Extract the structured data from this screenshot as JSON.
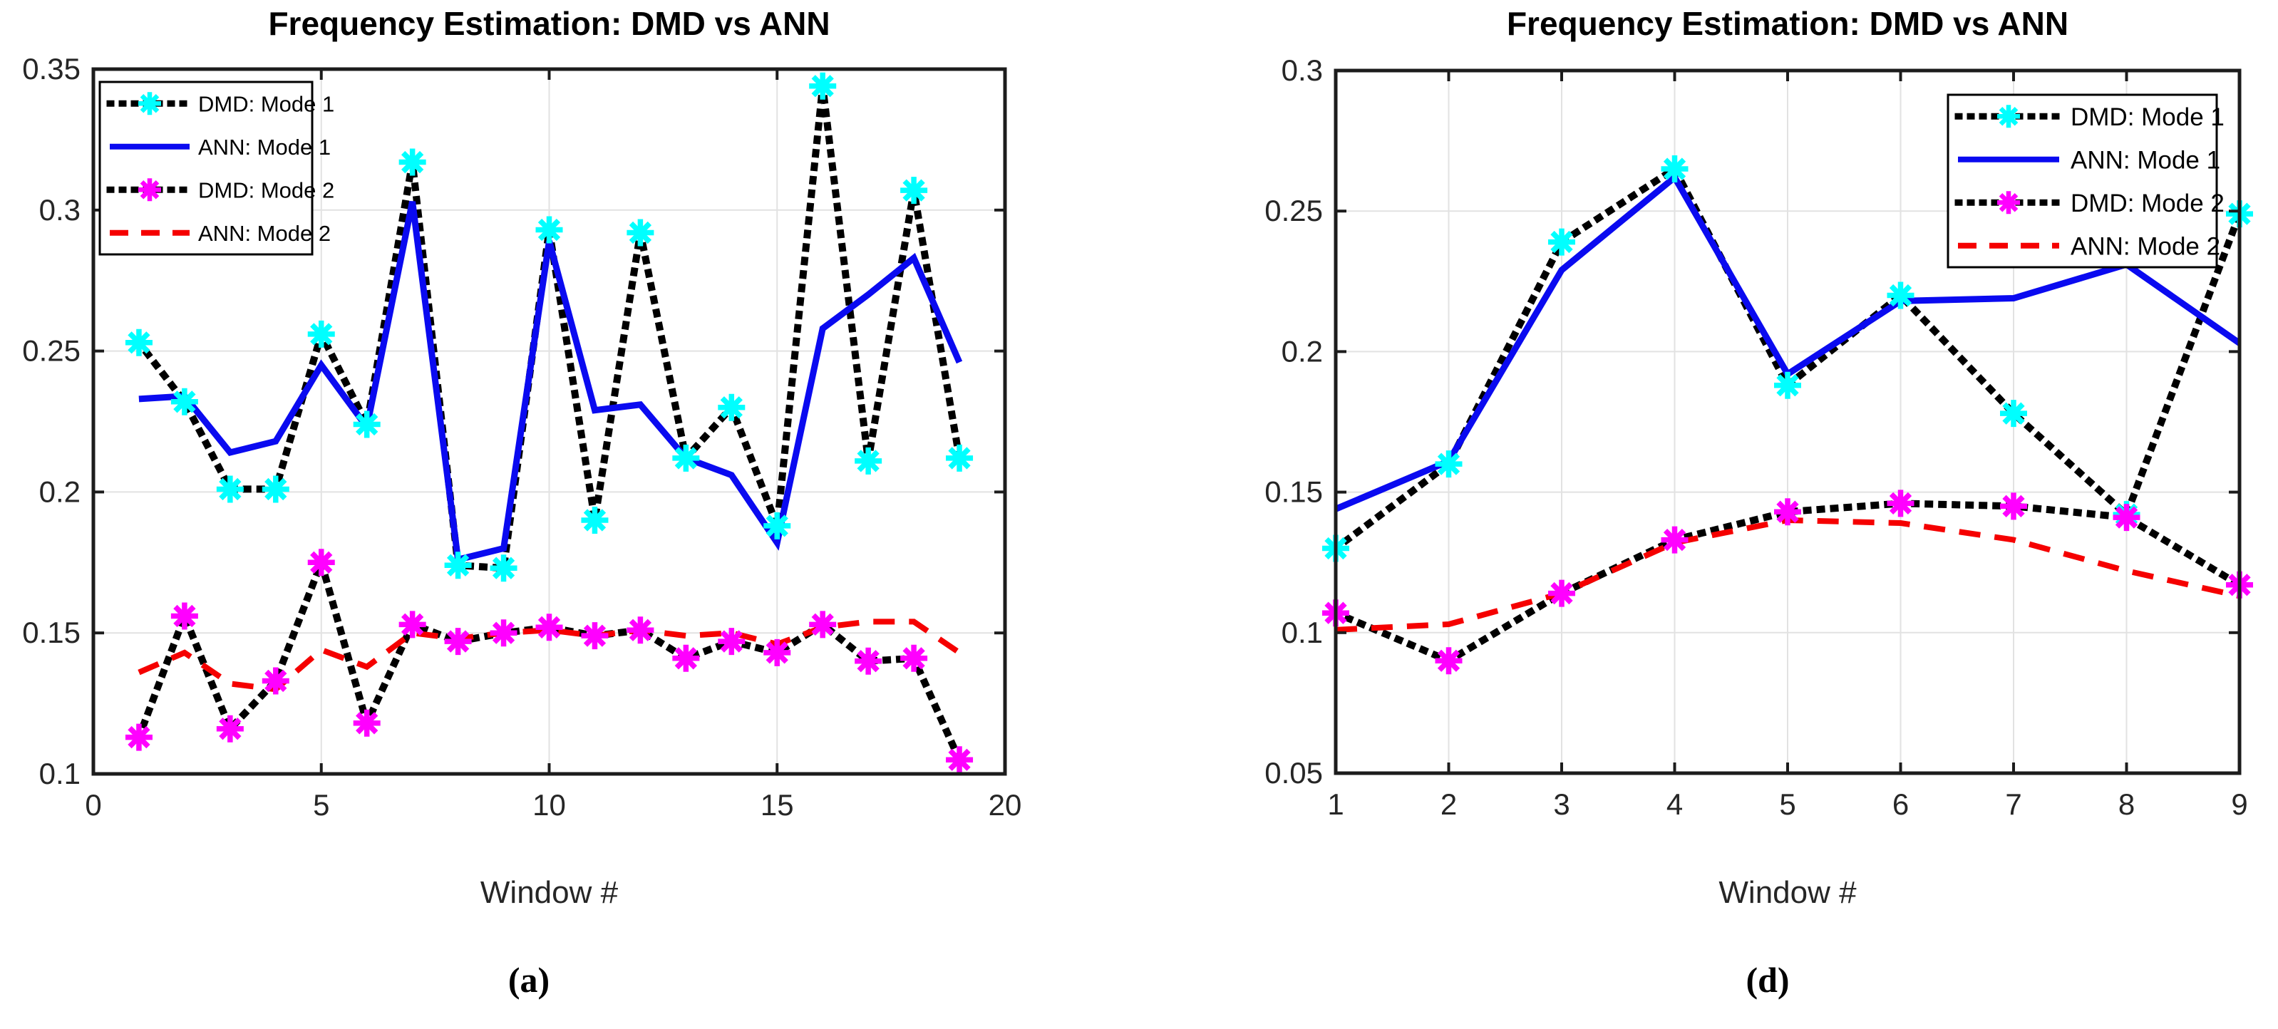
{
  "page_title": "Frequency Estimation: DMD vs ANN",
  "colors": {
    "dmd_line": "#000000",
    "ann_mode1": "#0a0af0",
    "ann_mode2": "#f50000",
    "dmd_mode1_marker": "#00ffff",
    "dmd_mode2_marker": "#ff00ff",
    "grid": "#e2e2e2",
    "axis_frame": "#1c1c1c",
    "tick_label": "#262626"
  },
  "chart_data": [
    {
      "id": "a",
      "type": "line",
      "title": "Frequency Estimation: DMD vs ANN",
      "xlabel": "Window #",
      "caption": "(a)",
      "grid": true,
      "legend_position": "top-left",
      "xlim": [
        0,
        20
      ],
      "ylim": [
        0.1,
        0.35
      ],
      "xtick_values": [
        0,
        5,
        10,
        15,
        20
      ],
      "xticks": [
        "0",
        "5",
        "10",
        "15",
        "20"
      ],
      "ytick_values": [
        0.1,
        0.15,
        0.2,
        0.25,
        0.3,
        0.35
      ],
      "yticks": [
        "0.1",
        "0.15",
        "0.2",
        "0.25",
        "0.3",
        "0.35"
      ],
      "x": [
        1,
        2,
        3,
        4,
        5,
        6,
        7,
        8,
        9,
        10,
        11,
        12,
        13,
        14,
        15,
        16,
        17,
        18,
        19
      ],
      "series": [
        {
          "name": "DMD: Mode 1",
          "style": "dotted",
          "line_color": "#000000",
          "marker": "asterisk",
          "marker_color": "#00ffff",
          "values": [
            0.253,
            0.232,
            0.201,
            0.201,
            0.256,
            0.224,
            0.317,
            0.174,
            0.173,
            0.293,
            0.19,
            0.292,
            0.212,
            0.23,
            0.188,
            0.344,
            0.211,
            0.307,
            0.212
          ]
        },
        {
          "name": "ANN: Mode 1",
          "style": "solid",
          "line_color": "#0a0af0",
          "marker": "none",
          "values": [
            0.233,
            0.234,
            0.214,
            0.218,
            0.245,
            0.223,
            0.303,
            0.176,
            0.18,
            0.289,
            0.229,
            0.231,
            0.212,
            0.206,
            0.182,
            0.258,
            0.27,
            0.283,
            0.246
          ]
        },
        {
          "name": "DMD: Mode 2",
          "style": "dotted",
          "line_color": "#000000",
          "marker": "asterisk",
          "marker_color": "#ff00ff",
          "values": [
            0.113,
            0.156,
            0.116,
            0.133,
            0.175,
            0.118,
            0.153,
            0.147,
            0.15,
            0.152,
            0.149,
            0.151,
            0.141,
            0.147,
            0.143,
            0.153,
            0.14,
            0.141,
            0.105
          ]
        },
        {
          "name": "ANN: Mode 2",
          "style": "dashed",
          "line_color": "#f50000",
          "marker": "none",
          "values": [
            0.136,
            0.143,
            0.132,
            0.13,
            0.144,
            0.138,
            0.15,
            0.148,
            0.15,
            0.151,
            0.149,
            0.151,
            0.149,
            0.15,
            0.146,
            0.152,
            0.154,
            0.154,
            0.143
          ]
        }
      ]
    },
    {
      "id": "d",
      "type": "line",
      "title": "Frequency Estimation: DMD vs ANN",
      "xlabel": "Window #",
      "caption": "(d)",
      "grid": true,
      "legend_position": "top-right",
      "xlim": [
        1,
        9
      ],
      "ylim": [
        0.05,
        0.3
      ],
      "xtick_values": [
        1,
        2,
        3,
        4,
        5,
        6,
        7,
        8,
        9
      ],
      "xticks": [
        "1",
        "2",
        "3",
        "4",
        "5",
        "6",
        "7",
        "8",
        "9"
      ],
      "ytick_values": [
        0.05,
        0.1,
        0.15,
        0.2,
        0.25,
        0.3
      ],
      "yticks": [
        "0.05",
        "0.1",
        "0.15",
        "0.2",
        "0.25",
        "0.3"
      ],
      "x": [
        1,
        2,
        3,
        4,
        5,
        6,
        7,
        8,
        9
      ],
      "series": [
        {
          "name": "DMD: Mode 1",
          "style": "dotted",
          "line_color": "#000000",
          "marker": "asterisk",
          "marker_color": "#00ffff",
          "values": [
            0.13,
            0.16,
            0.239,
            0.265,
            0.188,
            0.22,
            0.178,
            0.142,
            0.249
          ]
        },
        {
          "name": "ANN: Mode 1",
          "style": "solid",
          "line_color": "#0a0af0",
          "marker": "none",
          "values": [
            0.144,
            0.161,
            0.229,
            0.262,
            0.192,
            0.218,
            0.219,
            0.231,
            0.203
          ]
        },
        {
          "name": "DMD: Mode 2",
          "style": "dotted",
          "line_color": "#000000",
          "marker": "asterisk",
          "marker_color": "#ff00ff",
          "values": [
            0.107,
            0.09,
            0.114,
            0.133,
            0.143,
            0.146,
            0.145,
            0.141,
            0.117
          ]
        },
        {
          "name": "ANN: Mode 2",
          "style": "dashed",
          "line_color": "#f50000",
          "marker": "none",
          "values": [
            0.101,
            0.103,
            0.114,
            0.132,
            0.14,
            0.139,
            0.133,
            0.122,
            0.113
          ]
        }
      ]
    }
  ]
}
